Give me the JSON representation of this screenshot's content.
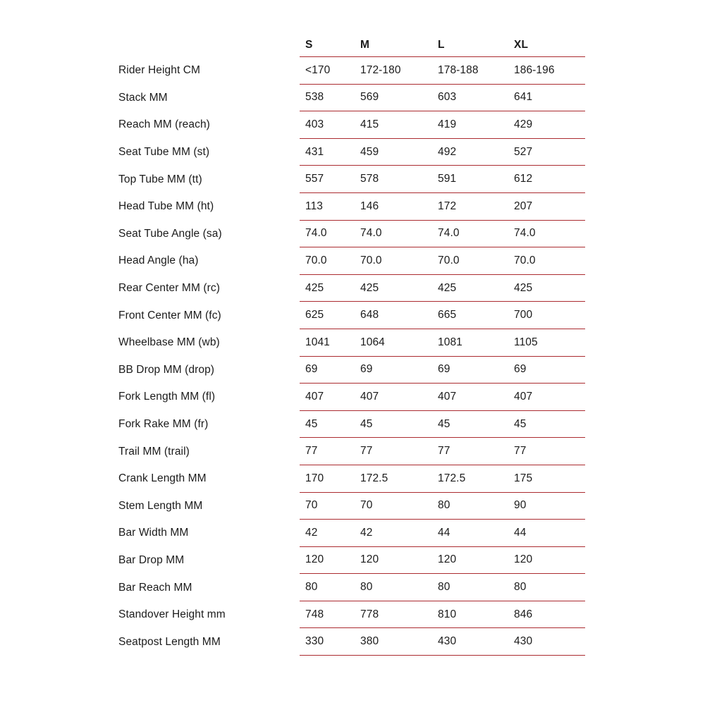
{
  "page": {
    "background_color": "#ffffff",
    "text_color": "#1b1b1b",
    "rule_color": "#ab2b30"
  },
  "table": {
    "name": "bike-geometry-table",
    "columns": [
      "S",
      "M",
      "L",
      "XL"
    ],
    "rows": [
      {
        "label": "Rider Height CM",
        "values": [
          "<170",
          "172-180",
          "178-188",
          "186-196"
        ]
      },
      {
        "label": "Stack MM",
        "values": [
          "538",
          "569",
          "603",
          "641"
        ]
      },
      {
        "label": "Reach MM (reach)",
        "values": [
          "403",
          "415",
          "419",
          "429"
        ]
      },
      {
        "label": "Seat Tube MM (st)",
        "values": [
          "431",
          "459",
          "492",
          "527"
        ]
      },
      {
        "label": "Top Tube MM (tt)",
        "values": [
          "557",
          "578",
          "591",
          "612"
        ]
      },
      {
        "label": "Head Tube MM (ht)",
        "values": [
          "113",
          "146",
          "172",
          "207"
        ]
      },
      {
        "label": "Seat Tube Angle (sa)",
        "values": [
          "74.0",
          "74.0",
          "74.0",
          "74.0"
        ]
      },
      {
        "label": "Head Angle (ha)",
        "values": [
          "70.0",
          "70.0",
          "70.0",
          "70.0"
        ]
      },
      {
        "label": "Rear Center MM (rc)",
        "values": [
          "425",
          "425",
          "425",
          "425"
        ]
      },
      {
        "label": "Front Center MM (fc)",
        "values": [
          "625",
          "648",
          "665",
          "700"
        ]
      },
      {
        "label": "Wheelbase MM (wb)",
        "values": [
          "1041",
          "1064",
          "1081",
          "1105"
        ]
      },
      {
        "label": "BB Drop MM (drop)",
        "values": [
          "69",
          "69",
          "69",
          "69"
        ]
      },
      {
        "label": "Fork Length MM (fl)",
        "values": [
          "407",
          "407",
          "407",
          "407"
        ]
      },
      {
        "label": "Fork Rake MM (fr)",
        "values": [
          "45",
          "45",
          "45",
          "45"
        ]
      },
      {
        "label": "Trail MM (trail)",
        "values": [
          "77",
          "77",
          "77",
          "77"
        ]
      },
      {
        "label": "Crank Length MM",
        "values": [
          "170",
          "172.5",
          "172.5",
          "175"
        ]
      },
      {
        "label": "Stem Length MM",
        "values": [
          "70",
          "70",
          "80",
          "90"
        ]
      },
      {
        "label": "Bar Width MM",
        "values": [
          "42",
          "42",
          "44",
          "44"
        ]
      },
      {
        "label": "Bar Drop MM",
        "values": [
          "120",
          "120",
          "120",
          "120"
        ]
      },
      {
        "label": "Bar Reach MM",
        "values": [
          "80",
          "80",
          "80",
          "80"
        ]
      },
      {
        "label": "Standover Height mm",
        "values": [
          "748",
          "778",
          "810",
          "846"
        ]
      },
      {
        "label": "Seatpost Length MM",
        "values": [
          "330",
          "380",
          "430",
          "430"
        ]
      }
    ]
  }
}
